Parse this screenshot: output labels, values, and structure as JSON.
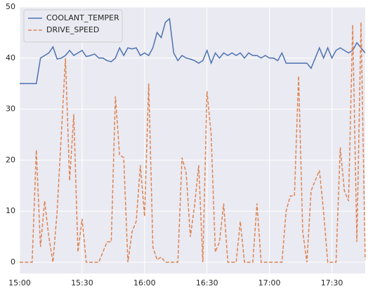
{
  "chart_data": {
    "type": "line",
    "x": [
      "15:00",
      "15:02",
      "15:04",
      "15:06",
      "15:08",
      "15:10",
      "15:12",
      "15:14",
      "15:16",
      "15:18",
      "15:20",
      "15:22",
      "15:24",
      "15:26",
      "15:28",
      "15:30",
      "15:32",
      "15:34",
      "15:36",
      "15:38",
      "15:40",
      "15:42",
      "15:44",
      "15:46",
      "15:48",
      "15:50",
      "15:52",
      "15:54",
      "15:56",
      "15:58",
      "16:00",
      "16:02",
      "16:04",
      "16:06",
      "16:08",
      "16:10",
      "16:12",
      "16:14",
      "16:16",
      "16:18",
      "16:20",
      "16:22",
      "16:24",
      "16:26",
      "16:28",
      "16:30",
      "16:32",
      "16:34",
      "16:36",
      "16:38",
      "16:40",
      "16:42",
      "16:44",
      "16:46",
      "16:48",
      "16:50",
      "16:52",
      "16:54",
      "16:56",
      "16:58",
      "17:00",
      "17:02",
      "17:04",
      "17:06",
      "17:08",
      "17:10",
      "17:12",
      "17:14",
      "17:16",
      "17:18",
      "17:20",
      "17:22",
      "17:24",
      "17:26",
      "17:28",
      "17:30",
      "17:32",
      "17:34",
      "17:36",
      "17:38",
      "17:40",
      "17:42",
      "17:44",
      "17:46"
    ],
    "series": [
      {
        "name": "COOLANT_TEMPER",
        "color": "#4c72b0",
        "dashed": false,
        "values": [
          35,
          35,
          35,
          35,
          35,
          40,
          40.5,
          41,
          42.2,
          39.8,
          40,
          40.5,
          41.5,
          40.5,
          41,
          41.5,
          40.3,
          40.5,
          40.8,
          40,
          40,
          39.5,
          39.3,
          40,
          42,
          40.5,
          42,
          41.8,
          42,
          40.5,
          41,
          40.5,
          42,
          45,
          44,
          47,
          47.7,
          41,
          39.5,
          40.5,
          40,
          39.8,
          39.5,
          39,
          39.5,
          41.5,
          39,
          41,
          40,
          41,
          40.5,
          41,
          40.5,
          41,
          40,
          41,
          40.5,
          40.5,
          40,
          40.5,
          40,
          40,
          39.5,
          41,
          39,
          39,
          39,
          39,
          39,
          39,
          38,
          40,
          42,
          40,
          42,
          40,
          41.5,
          42,
          41.5,
          41,
          41.5,
          43,
          42,
          41
        ]
      },
      {
        "name": "DRIVE_SPEED",
        "color": "#dd8452",
        "dashed": true,
        "values": [
          0,
          0,
          0,
          0,
          22,
          3,
          12,
          5,
          0,
          10,
          25,
          40,
          16,
          29,
          2,
          8.5,
          0,
          0,
          0,
          0,
          2,
          4,
          4,
          32.5,
          21,
          20.5,
          0,
          6,
          8,
          19,
          9,
          35,
          3,
          0.5,
          1,
          0,
          0,
          0,
          0,
          20.5,
          17.5,
          5,
          11,
          19,
          0,
          33.5,
          25,
          2,
          4,
          11.5,
          0,
          0,
          0,
          8,
          0,
          0,
          0,
          11.5,
          0,
          0,
          0,
          0,
          0,
          0,
          10,
          13,
          13,
          36.5,
          6,
          0,
          14,
          16,
          18,
          10,
          0,
          0,
          0,
          22.5,
          14,
          12,
          46.5,
          4,
          47,
          0.5
        ]
      }
    ],
    "xlim": [
      "15:00",
      "17:46"
    ],
    "xticks": [
      "15:00",
      "15:30",
      "16:00",
      "16:30",
      "17:00",
      "17:30"
    ],
    "ylim": [
      -2.2,
      50
    ],
    "yticks": [
      0,
      10,
      20,
      30,
      40,
      50
    ],
    "grid": true,
    "legend": "upper left"
  }
}
